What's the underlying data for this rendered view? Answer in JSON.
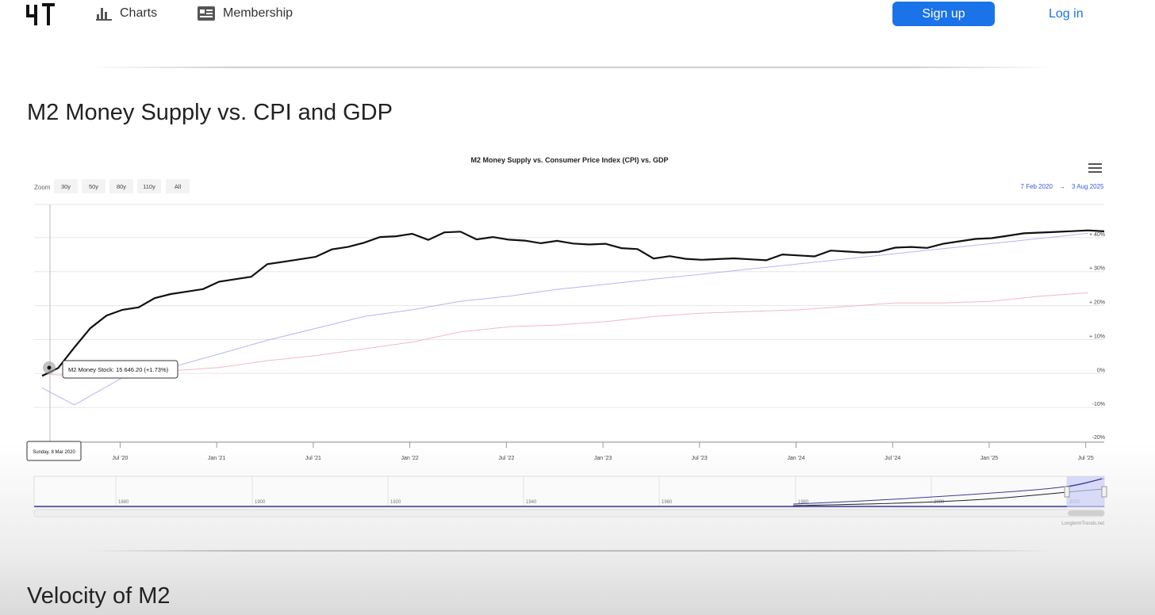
{
  "nav": {
    "charts_label": "Charts",
    "membership_label": "Membership",
    "signup_label": "Sign up",
    "login_label": "Log in"
  },
  "page": {
    "heading": "M2 Money Supply vs. CPI and GDP",
    "next_heading": "Velocity of M2"
  },
  "zoom": {
    "label": "Zoom",
    "buttons": [
      "30y",
      "50y",
      "80y",
      "110y",
      "All"
    ]
  },
  "range": {
    "from": "7 Feb 2020",
    "arrow": "→",
    "to": "3 Aug 2025"
  },
  "tooltip": {
    "text": "M2 Money Stock: 15 646.20 (+1.73%)",
    "date": "Sunday, 8 Mar 2020"
  },
  "navigator": {
    "ticks": [
      "1880",
      "1900",
      "1920",
      "1940",
      "1960",
      "1980",
      "2000",
      "2020"
    ]
  },
  "credit": "LongtermTrends.net",
  "colors": {
    "m2": "#111111",
    "gdp": "#b7b6f0",
    "cpi": "#f0b9bf",
    "accent": "#1a73e8"
  },
  "chart_data": {
    "type": "line",
    "title": "M2 Money Supply vs. Consumer Price Index (CPI) vs. GDP",
    "xlabel": "",
    "ylabel": "",
    "x_ticks": [
      "Jul '20",
      "Jan '21",
      "Jul '21",
      "Jan '22",
      "Jul '22",
      "Jan '23",
      "Jul '23",
      "Jan '24",
      "Jul '24",
      "Jan '25",
      "Jul '25"
    ],
    "y_ticks": [
      "-20%",
      "-10%",
      "0%",
      "+ 10%",
      "+ 20%",
      "+ 30%",
      "+ 40%"
    ],
    "ylim": [
      -20,
      50
    ],
    "x_range": [
      "2020-02",
      "2025-08"
    ],
    "series": [
      {
        "key": "m2",
        "x": [
          "2020-02",
          "2020-03",
          "2020-04",
          "2020-05",
          "2020-06",
          "2020-07",
          "2020-08",
          "2020-09",
          "2020-10",
          "2020-11",
          "2020-12",
          "2021-01",
          "2021-02",
          "2021-03",
          "2021-04",
          "2021-05",
          "2021-06",
          "2021-07",
          "2021-08",
          "2021-09",
          "2021-10",
          "2021-11",
          "2021-12",
          "2022-01",
          "2022-02",
          "2022-03",
          "2022-04",
          "2022-05",
          "2022-06",
          "2022-07",
          "2022-08",
          "2022-09",
          "2022-10",
          "2022-11",
          "2022-12",
          "2023-01",
          "2023-02",
          "2023-03",
          "2023-04",
          "2023-05",
          "2023-06",
          "2023-07",
          "2023-08",
          "2023-09",
          "2023-10",
          "2023-11",
          "2023-12",
          "2024-01",
          "2024-02",
          "2024-03",
          "2024-04",
          "2024-05",
          "2024-06",
          "2024-07",
          "2024-08",
          "2024-09",
          "2024-10",
          "2024-11",
          "2024-12",
          "2025-01",
          "2025-02",
          "2025-03",
          "2025-04",
          "2025-05",
          "2025-06",
          "2025-07",
          "2025-08"
        ],
        "values": [
          -0.5,
          1.7,
          8,
          14,
          17,
          19,
          20,
          22,
          23.5,
          24.5,
          25.5,
          27,
          28,
          29,
          32,
          33,
          34,
          35,
          36.5,
          37.5,
          39,
          40,
          40.5,
          41.5,
          40,
          41.5,
          42,
          40,
          40,
          39.5,
          39.5,
          39,
          39,
          38.5,
          38.5,
          38,
          37,
          37,
          34.5,
          34.5,
          34,
          34,
          33.5,
          34,
          34,
          34,
          35,
          35,
          35,
          36,
          36,
          36,
          36.5,
          37,
          37.5,
          37.5,
          38,
          39,
          40,
          40.5,
          40.5,
          41.5,
          42,
          41.5,
          42,
          42.5,
          42.5
        ]
      },
      {
        "key": "gdp",
        "x": [
          "2020-02",
          "2020-04",
          "2020-07",
          "2020-10",
          "2021-01",
          "2021-04",
          "2021-07",
          "2021-10",
          "2022-01",
          "2022-04",
          "2022-07",
          "2022-10",
          "2023-01",
          "2023-04",
          "2023-07",
          "2023-10",
          "2024-01",
          "2024-04",
          "2024-07",
          "2024-10",
          "2025-01",
          "2025-04",
          "2025-07"
        ],
        "values": [
          -4,
          -9,
          -1,
          2,
          6,
          10,
          13.5,
          17,
          19,
          21.5,
          23,
          25,
          26.5,
          28,
          29.5,
          31,
          32.5,
          34,
          35.5,
          37,
          38.5,
          40,
          41.5
        ]
      },
      {
        "key": "cpi",
        "x": [
          "2020-02",
          "2020-04",
          "2020-07",
          "2020-10",
          "2021-01",
          "2021-04",
          "2021-07",
          "2021-10",
          "2022-01",
          "2022-04",
          "2022-07",
          "2022-10",
          "2023-01",
          "2023-04",
          "2023-07",
          "2023-10",
          "2024-01",
          "2024-04",
          "2024-07",
          "2024-10",
          "2025-01",
          "2025-04",
          "2025-07"
        ],
        "values": [
          0,
          -0.3,
          0.5,
          1,
          2,
          4,
          5.5,
          7.5,
          9.5,
          12.5,
          14,
          14.5,
          15.5,
          17,
          18,
          18.5,
          19,
          20,
          21,
          21,
          21.5,
          23,
          24
        ]
      }
    ]
  }
}
